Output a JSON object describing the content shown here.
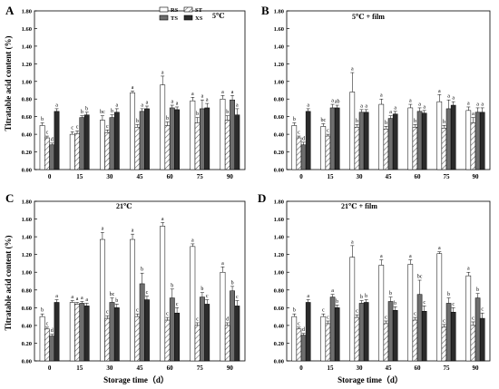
{
  "figure": {
    "ylabel": "Titratable acid content (%)",
    "xlabel": "Storage time（d）"
  },
  "legend": [
    {
      "name": "RS",
      "pattern": "white"
    },
    {
      "name": "TS",
      "pattern": "darkgray"
    },
    {
      "name": "ST",
      "pattern": "hatch"
    },
    {
      "name": "XS",
      "pattern": "black"
    }
  ],
  "colors": {
    "white": "#ffffff",
    "darkgray": "#6e6e6e",
    "black": "#2b2b2b",
    "hatch": "#555555",
    "axis": "#000000"
  },
  "chart_data": [
    {
      "type": "bar",
      "panel_letter": "A",
      "title": "5℃",
      "categories": [
        "0",
        "15",
        "30",
        "45",
        "60",
        "75",
        "90"
      ],
      "ylim": [
        0,
        1.8
      ],
      "yticks": [
        "0.00",
        "0.20",
        "0.40",
        "0.60",
        "0.80",
        "1.00",
        "1.20",
        "1.40",
        "1.60",
        "1.80"
      ],
      "series": [
        {
          "name": "RS",
          "values": [
            0.5,
            0.4,
            0.56,
            0.87,
            0.96,
            0.78,
            0.8
          ],
          "errors": [
            0.03,
            0.03,
            0.05,
            0.02,
            0.1,
            0.04,
            0.04
          ],
          "letters": [
            "b",
            "c",
            "bc",
            "a",
            "a",
            "a",
            "a"
          ]
        },
        {
          "name": "ST",
          "values": [
            0.36,
            0.41,
            0.42,
            0.48,
            0.5,
            0.53,
            0.56
          ],
          "errors": [
            0.02,
            0.03,
            0.03,
            0.03,
            0.04,
            0.06,
            0.05
          ],
          "letters": [
            "c",
            "c",
            "c",
            "b",
            "b",
            "b",
            "b"
          ]
        },
        {
          "name": "TS",
          "values": [
            0.28,
            0.59,
            0.59,
            0.66,
            0.7,
            0.69,
            0.79
          ],
          "errors": [
            0.02,
            0.02,
            0.03,
            0.03,
            0.03,
            0.1,
            0.05
          ],
          "letters": [
            "d",
            "b",
            "b",
            "a",
            "a",
            "a",
            "a"
          ]
        },
        {
          "name": "XS",
          "values": [
            0.66,
            0.62,
            0.65,
            0.69,
            0.68,
            0.7,
            0.62
          ],
          "errors": [
            0.03,
            0.03,
            0.04,
            0.03,
            0.03,
            0.05,
            0.07
          ],
          "letters": [
            "a",
            "b",
            "a",
            "a",
            "a",
            "a",
            "a"
          ]
        }
      ]
    },
    {
      "type": "bar",
      "panel_letter": "B",
      "title": "5℃ + film",
      "categories": [
        "0",
        "15",
        "30",
        "45",
        "60",
        "75",
        "90"
      ],
      "ylim": [
        0,
        1.8
      ],
      "yticks": [
        "0.00",
        "0.20",
        "0.40",
        "0.60",
        "0.80",
        "1.00",
        "1.20",
        "1.40",
        "1.60",
        "1.80"
      ],
      "series": [
        {
          "name": "RS",
          "values": [
            0.5,
            0.49,
            0.88,
            0.74,
            0.7,
            0.77,
            0.67
          ],
          "errors": [
            0.03,
            0.03,
            0.22,
            0.06,
            0.04,
            0.08,
            0.04
          ],
          "letters": [
            "b",
            "bc",
            "a",
            "a",
            "a",
            "a",
            "a"
          ]
        },
        {
          "name": "ST",
          "values": [
            0.36,
            0.38,
            0.48,
            0.46,
            0.48,
            0.47,
            0.53
          ],
          "errors": [
            0.02,
            0.02,
            0.03,
            0.03,
            0.03,
            0.03,
            0.06
          ],
          "letters": [
            "c",
            "c",
            "b",
            "b",
            "b",
            "b",
            "a"
          ]
        },
        {
          "name": "TS",
          "values": [
            0.28,
            0.7,
            0.65,
            0.58,
            0.66,
            0.69,
            0.65
          ],
          "errors": [
            0.03,
            0.04,
            0.03,
            0.03,
            0.04,
            0.1,
            0.05
          ],
          "letters": [
            "d",
            "a",
            "a",
            "a",
            "a",
            "a",
            "a"
          ]
        },
        {
          "name": "XS",
          "values": [
            0.66,
            0.7,
            0.65,
            0.63,
            0.64,
            0.73,
            0.65
          ],
          "errors": [
            0.03,
            0.03,
            0.03,
            0.03,
            0.03,
            0.04,
            0.05
          ],
          "letters": [
            "a",
            "ab",
            "a",
            "a",
            "a",
            "a",
            "a"
          ]
        }
      ]
    },
    {
      "type": "bar",
      "panel_letter": "C",
      "title": "21℃",
      "categories": [
        "0",
        "15",
        "30",
        "45",
        "60",
        "75",
        "90"
      ],
      "ylim": [
        0,
        1.8
      ],
      "yticks": [
        "0.00",
        "0.20",
        "0.40",
        "0.60",
        "0.80",
        "1.00",
        "1.20",
        "1.40",
        "1.60",
        "1.80"
      ],
      "series": [
        {
          "name": "RS",
          "values": [
            0.5,
            0.66,
            1.37,
            1.37,
            1.52,
            1.29,
            1.0
          ],
          "errors": [
            0.03,
            0.02,
            0.08,
            0.06,
            0.04,
            0.03,
            0.06
          ],
          "letters": [
            "b",
            "a",
            "a",
            "a",
            "a",
            "a",
            "a"
          ]
        },
        {
          "name": "ST",
          "values": [
            0.36,
            0.64,
            0.48,
            0.5,
            0.46,
            0.4,
            0.4
          ],
          "errors": [
            0.02,
            0.02,
            0.03,
            0.03,
            0.03,
            0.03,
            0.03
          ],
          "letters": [
            "c",
            "a",
            "c",
            "c",
            "c",
            "c",
            "d"
          ]
        },
        {
          "name": "TS",
          "values": [
            0.28,
            0.65,
            0.66,
            0.87,
            0.71,
            0.72,
            0.79
          ],
          "errors": [
            0.02,
            0.02,
            0.05,
            0.12,
            0.1,
            0.05,
            0.05
          ],
          "letters": [
            "d",
            "a",
            "bc",
            "b",
            "b",
            "b",
            "b"
          ]
        },
        {
          "name": "XS",
          "values": [
            0.66,
            0.62,
            0.6,
            0.69,
            0.54,
            0.64,
            0.62
          ],
          "errors": [
            0.03,
            0.03,
            0.04,
            0.04,
            0.06,
            0.05,
            0.06
          ],
          "letters": [
            "a",
            "a",
            "b",
            "c",
            "c",
            "c",
            "c"
          ]
        }
      ]
    },
    {
      "type": "bar",
      "panel_letter": "D",
      "title": "21℃ + film",
      "categories": [
        "0",
        "15",
        "30",
        "45",
        "60",
        "75",
        "90"
      ],
      "ylim": [
        0,
        1.8
      ],
      "yticks": [
        "0.00",
        "0.20",
        "0.40",
        "0.60",
        "0.80",
        "1.00",
        "1.20",
        "1.40",
        "1.60",
        "1.80"
      ],
      "series": [
        {
          "name": "RS",
          "values": [
            0.5,
            0.5,
            1.17,
            1.08,
            1.09,
            1.21,
            0.96
          ],
          "errors": [
            0.03,
            0.03,
            0.13,
            0.06,
            0.05,
            0.02,
            0.04
          ],
          "letters": [
            "b",
            "c",
            "a",
            "a",
            "a",
            "a",
            "a"
          ]
        },
        {
          "name": "ST",
          "values": [
            0.36,
            0.42,
            0.49,
            0.42,
            0.46,
            0.38,
            0.4
          ],
          "errors": [
            0.02,
            0.03,
            0.03,
            0.03,
            0.03,
            0.03,
            0.04
          ],
          "letters": [
            "c",
            "c",
            "c",
            "c",
            "c",
            "c",
            "c"
          ]
        },
        {
          "name": "TS",
          "values": [
            0.29,
            0.72,
            0.65,
            0.67,
            0.75,
            0.65,
            0.71
          ],
          "errors": [
            0.02,
            0.03,
            0.03,
            0.05,
            0.16,
            0.06,
            0.05
          ],
          "letters": [
            "d",
            "a",
            "b",
            "b",
            "bc",
            "b",
            "b"
          ]
        },
        {
          "name": "XS",
          "values": [
            0.66,
            0.6,
            0.66,
            0.57,
            0.56,
            0.55,
            0.48
          ],
          "errors": [
            0.03,
            0.03,
            0.03,
            0.04,
            0.06,
            0.05,
            0.06
          ],
          "letters": [
            "a",
            "b",
            "b",
            "b",
            "c",
            "c",
            "c"
          ]
        }
      ]
    }
  ]
}
